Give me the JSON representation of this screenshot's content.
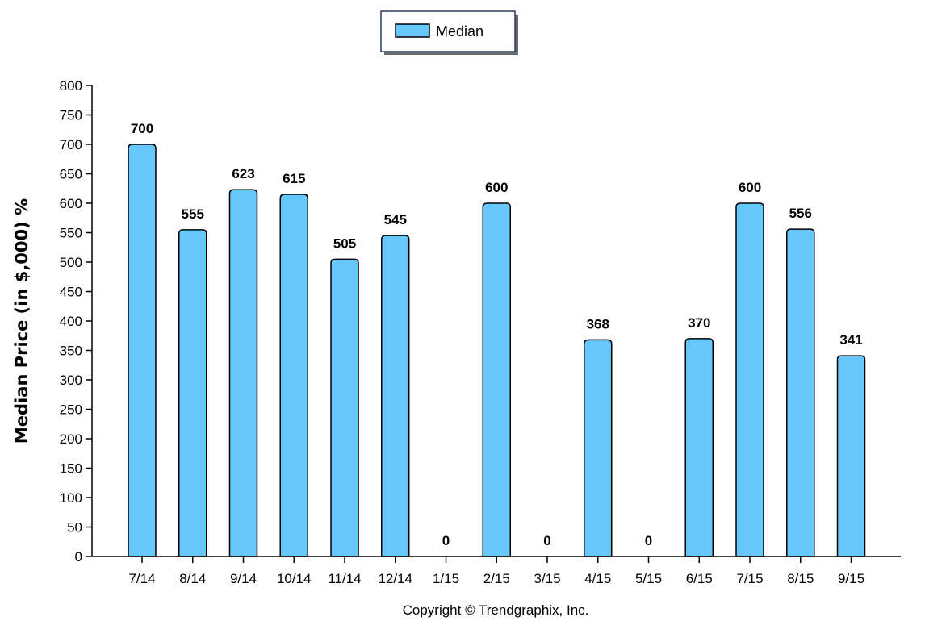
{
  "chart_data": {
    "type": "bar",
    "categories": [
      "7/14",
      "8/14",
      "9/14",
      "10/14",
      "11/14",
      "12/14",
      "1/15",
      "2/15",
      "3/15",
      "4/15",
      "5/15",
      "6/15",
      "7/15",
      "8/15",
      "9/15"
    ],
    "series": [
      {
        "name": "Median",
        "values": [
          700,
          555,
          623,
          615,
          505,
          545,
          0,
          600,
          0,
          368,
          0,
          370,
          600,
          556,
          341
        ],
        "color": "#66c8fa"
      }
    ],
    "ylabel": "Median Price (in $,000) %",
    "xlabel": "",
    "ylim": [
      0,
      800
    ],
    "yticks": [
      0,
      50,
      100,
      150,
      200,
      250,
      300,
      350,
      400,
      450,
      500,
      550,
      600,
      650,
      700,
      750,
      800
    ],
    "grid": false,
    "legend_position": "top-center",
    "data_labels": true
  },
  "legend": {
    "label": "Median"
  },
  "footer": {
    "copyright": "Copyright © Trendgraphix, Inc."
  }
}
